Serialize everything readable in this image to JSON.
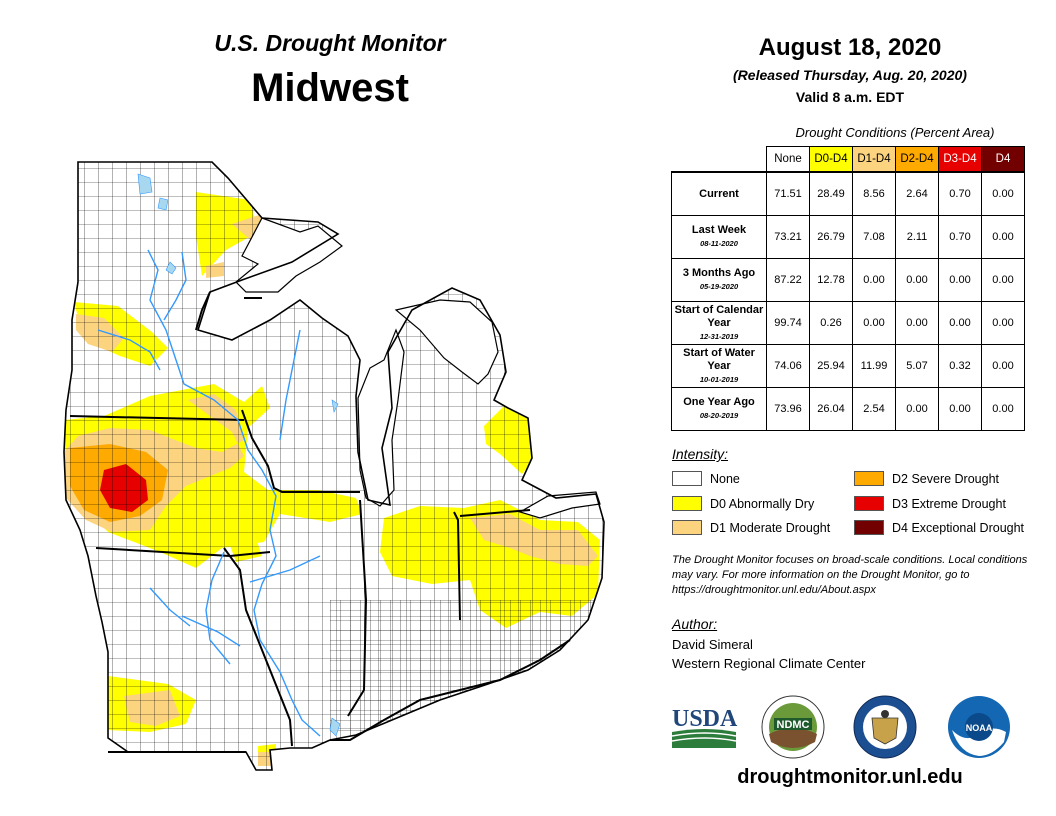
{
  "header": {
    "subtitle": "U.S. Drought Monitor",
    "region": "Midwest"
  },
  "report": {
    "date": "August 18, 2020",
    "released": "(Released Thursday, Aug. 20, 2020)",
    "valid": "Valid 8 a.m. EDT"
  },
  "conditions": {
    "caption": "Drought Conditions (Percent Area)",
    "columns": [
      "None",
      "D0-D4",
      "D1-D4",
      "D2-D4",
      "D3-D4",
      "D4"
    ],
    "column_colors": [
      "#ffffff",
      "#ffff00",
      "#fcd37f",
      "#ffaa00",
      "#e60000",
      "#730000"
    ],
    "rows": [
      {
        "label": "Current",
        "date": "",
        "values": [
          "71.51",
          "28.49",
          "8.56",
          "2.64",
          "0.70",
          "0.00"
        ]
      },
      {
        "label": "Last Week",
        "date": "08-11-2020",
        "values": [
          "73.21",
          "26.79",
          "7.08",
          "2.11",
          "0.70",
          "0.00"
        ]
      },
      {
        "label": "3 Months Ago",
        "date": "05-19-2020",
        "values": [
          "87.22",
          "12.78",
          "0.00",
          "0.00",
          "0.00",
          "0.00"
        ]
      },
      {
        "label": "Start of Calendar Year",
        "date": "12-31-2019",
        "values": [
          "99.74",
          "0.26",
          "0.00",
          "0.00",
          "0.00",
          "0.00"
        ]
      },
      {
        "label": "Start of Water Year",
        "date": "10-01-2019",
        "values": [
          "74.06",
          "25.94",
          "11.99",
          "5.07",
          "0.32",
          "0.00"
        ]
      },
      {
        "label": "One Year Ago",
        "date": "08-20-2019",
        "values": [
          "73.96",
          "26.04",
          "2.54",
          "0.00",
          "0.00",
          "0.00"
        ]
      }
    ]
  },
  "legend": {
    "heading": "Intensity:",
    "items": [
      {
        "label": "None",
        "color": "#ffffff"
      },
      {
        "label": "D0 Abnormally Dry",
        "color": "#ffff00"
      },
      {
        "label": "D1 Moderate Drought",
        "color": "#fcd37f"
      },
      {
        "label": "D2 Severe Drought",
        "color": "#ffaa00"
      },
      {
        "label": "D3 Extreme Drought",
        "color": "#e60000"
      },
      {
        "label": "D4 Exceptional Drought",
        "color": "#730000"
      }
    ]
  },
  "note": "The Drought Monitor focuses on broad-scale conditions. Local conditions may vary. For more information on the Drought Monitor, go to https://droughtmonitor.unl.edu/About.aspx",
  "author": {
    "heading": "Author:",
    "name": "David Simeral",
    "org": "Western Regional Climate Center"
  },
  "logos": {
    "usda": "USDA",
    "ndmc": "NDMC",
    "noaa": "NOAA"
  },
  "footer_url": "droughtmonitor.unl.edu",
  "colors": {
    "d0": "#ffff00",
    "d1": "#fcd37f",
    "d2": "#ffaa00",
    "d3": "#e60000",
    "water": "#a8d8f0",
    "river": "#3399ff"
  }
}
